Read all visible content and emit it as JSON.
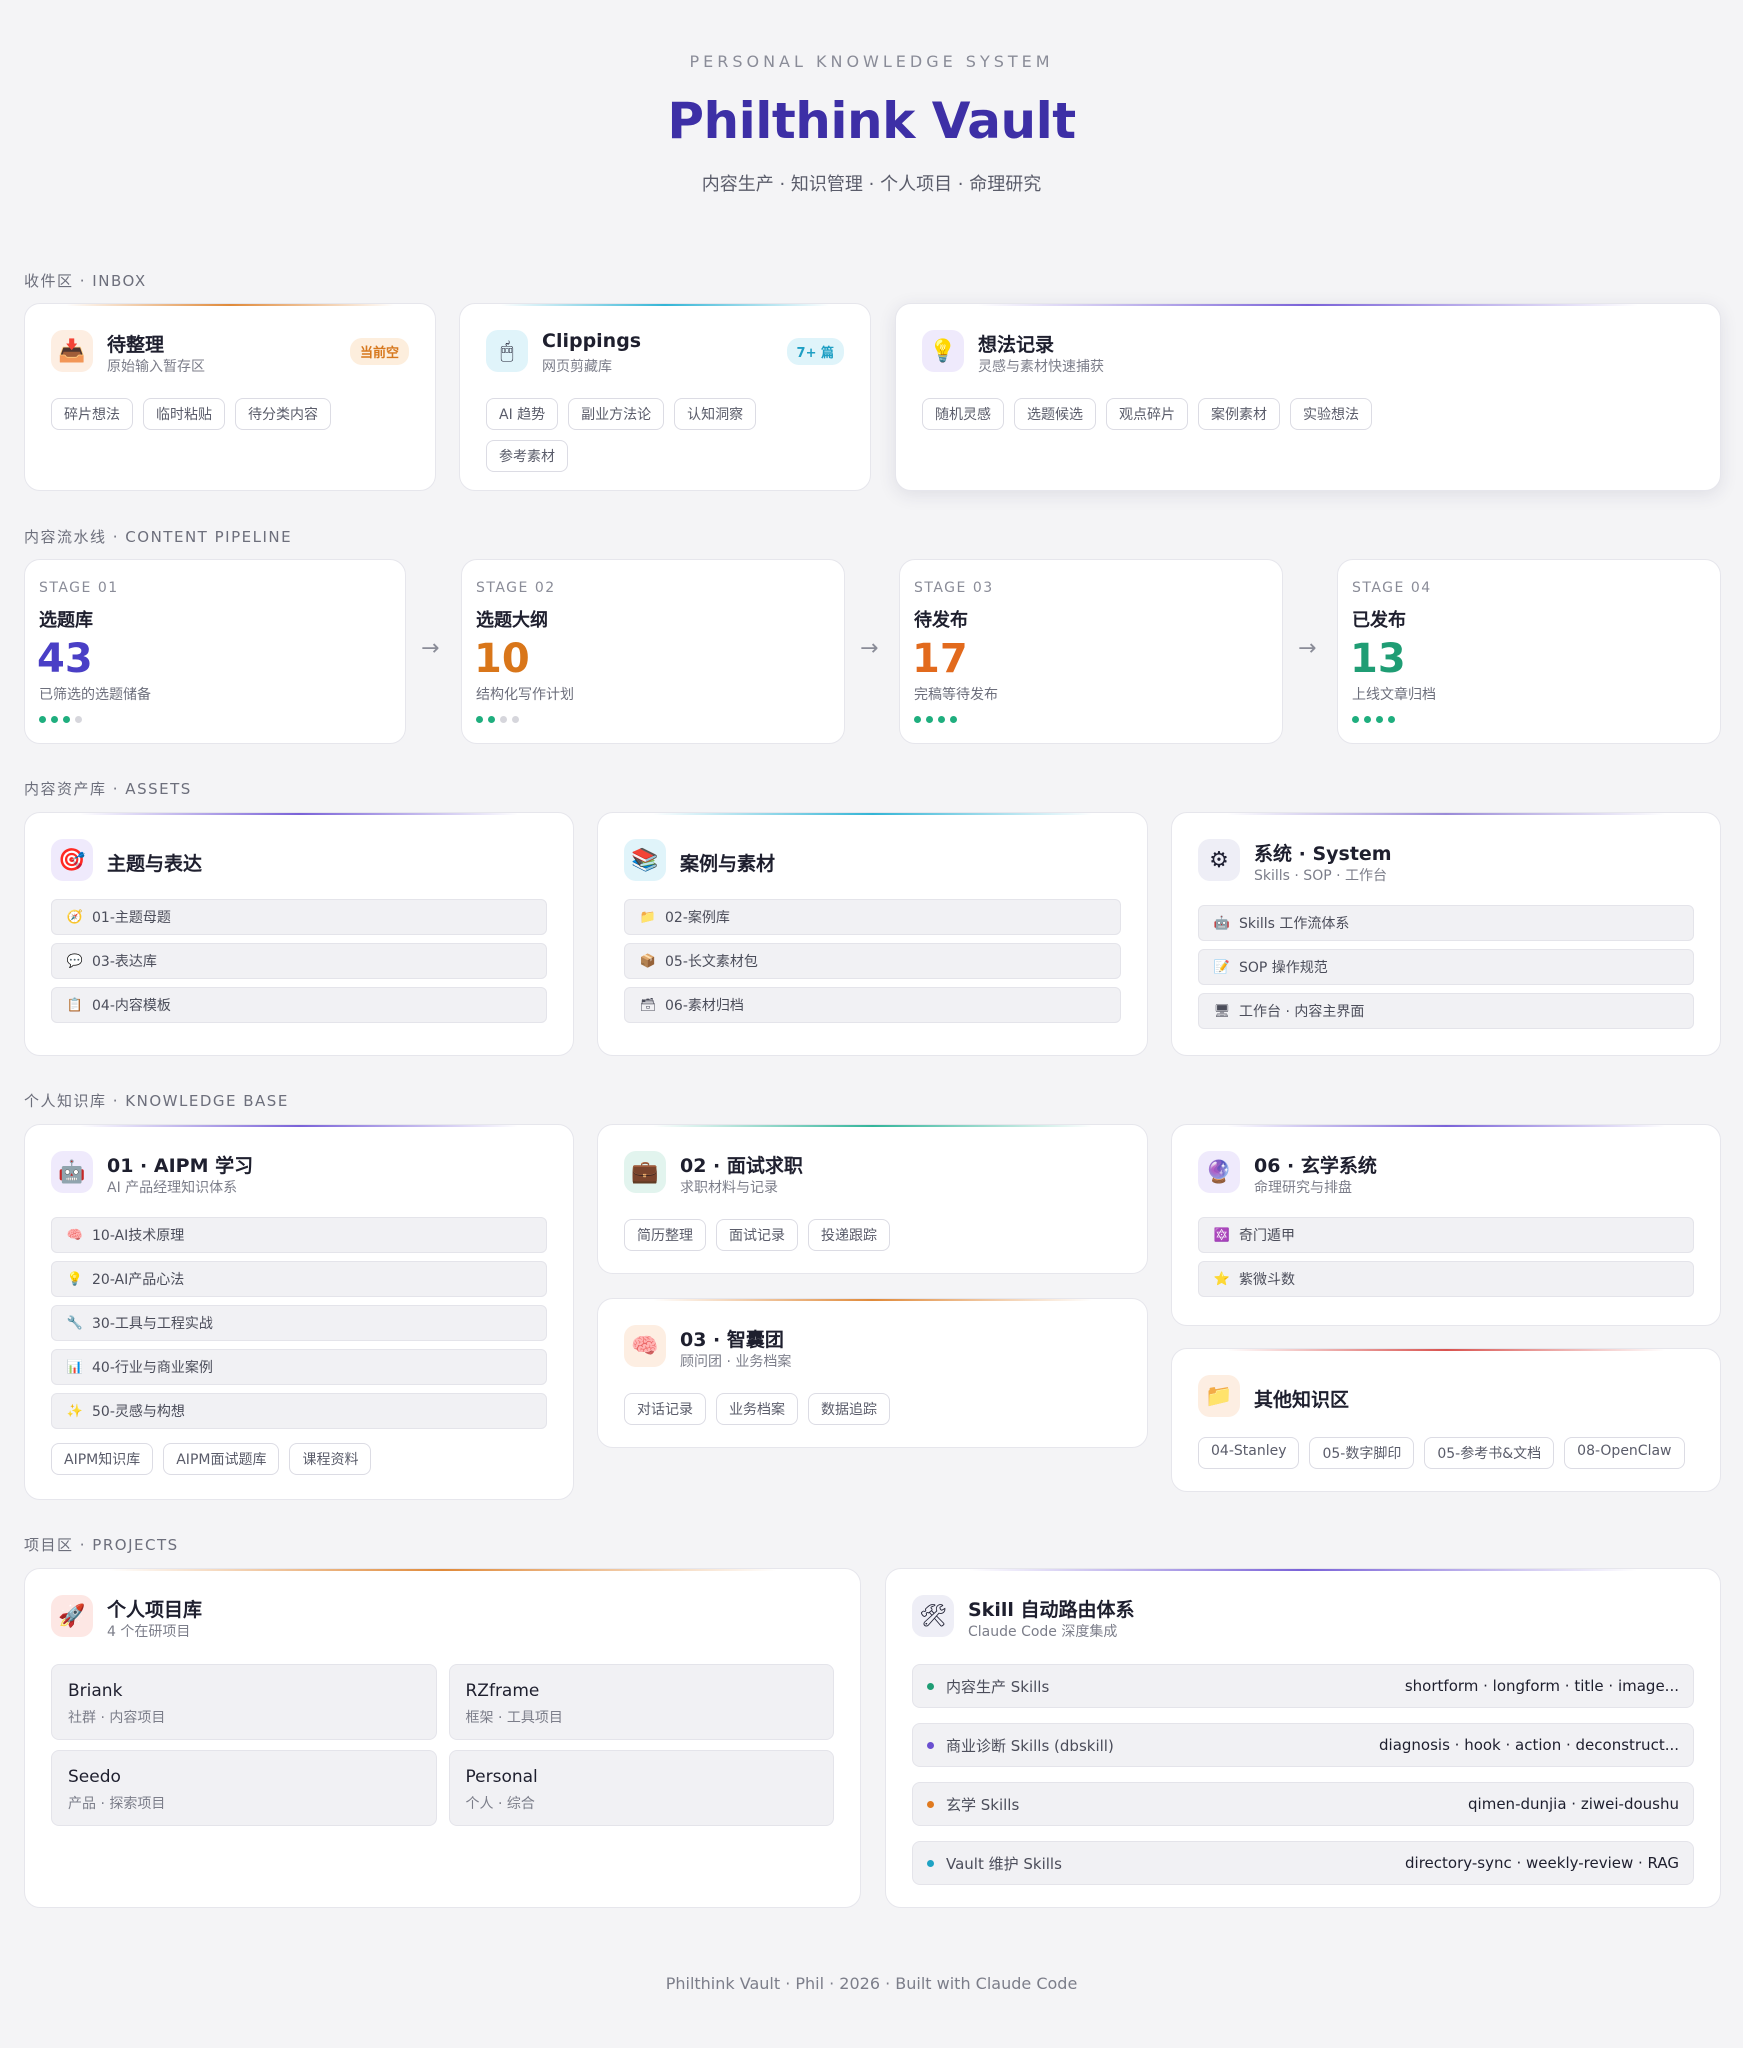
{
  "header": {
    "eyebrow": "PERSONAL KNOWLEDGE SYSTEM",
    "title": "Philthink Vault",
    "subtitle": "内容生产 · 知识管理 · 个人项目 · 命理研究"
  },
  "inbox": {
    "label": "收件区 · INBOX",
    "cards": [
      {
        "title": "待整理",
        "subtitle": "原始输入暂存区",
        "icon": "inbox-tray-icon",
        "badge": "当前空",
        "tags": [
          "碎片想法",
          "临时粘贴",
          "待分类内容"
        ]
      },
      {
        "title": "Clippings",
        "subtitle": "网页剪藏库",
        "icon": "mouse-icon",
        "badge": "7+ 篇",
        "tags": [
          "AI 趋势",
          "副业方法论",
          "认知洞察",
          "参考素材"
        ]
      },
      {
        "title": "想法记录",
        "subtitle": "灵感与素材快速捕获",
        "icon": "lightbulb-icon",
        "tags": [
          "随机灵感",
          "选题候选",
          "观点碎片",
          "案例素材",
          "实验想法"
        ]
      }
    ]
  },
  "pipeline": {
    "label": "内容流水线 · CONTENT PIPELINE",
    "arrow": "→",
    "stages": [
      {
        "stage": "STAGE 01",
        "name": "选题库",
        "count": "43",
        "desc": "已筛选的选题储备",
        "filled": 3,
        "total": 4,
        "color": "#4a3fc6"
      },
      {
        "stage": "STAGE 02",
        "name": "选题大纲",
        "count": "10",
        "desc": "结构化写作计划",
        "filled": 2,
        "total": 4,
        "color": "#d9761a"
      },
      {
        "stage": "STAGE 03",
        "name": "待发布",
        "count": "17",
        "desc": "完稿等待发布",
        "filled": 4,
        "total": 4,
        "color": "#e26a1d"
      },
      {
        "stage": "STAGE 04",
        "name": "已发布",
        "count": "13",
        "desc": "上线文章归档",
        "filled": 4,
        "total": 4,
        "color": "#1f9d74"
      }
    ]
  },
  "assets": {
    "label": "内容资产库 · ASSETS",
    "cards": [
      {
        "title": "主题与表达",
        "icon": "target-icon",
        "rows": [
          {
            "icon": "compass-icon",
            "glyph": "🧭",
            "text": "01-主题母题"
          },
          {
            "icon": "speech-bubble-icon",
            "glyph": "💬",
            "text": "03-表达库"
          },
          {
            "icon": "clipboard-icon",
            "glyph": "📋",
            "text": "04-内容模板"
          }
        ]
      },
      {
        "title": "案例与素材",
        "icon": "books-icon",
        "rows": [
          {
            "icon": "folder-icon",
            "glyph": "📁",
            "text": "02-案例库"
          },
          {
            "icon": "package-icon",
            "glyph": "📦",
            "text": "05-长文素材包"
          },
          {
            "icon": "archive-icon",
            "glyph": "🗃",
            "text": "06-素材归档"
          }
        ]
      },
      {
        "title": "系统 · System",
        "subtitle": "Skills · SOP · 工作台",
        "icon": "gear-icon",
        "rows": [
          {
            "icon": "robot-icon",
            "glyph": "🤖",
            "text": "Skills 工作流体系"
          },
          {
            "icon": "memo-icon",
            "glyph": "📝",
            "text": "SOP 操作规范"
          },
          {
            "icon": "monitor-icon",
            "glyph": "🖥",
            "text": "工作台 · 内容主界面"
          }
        ]
      }
    ]
  },
  "knowledge": {
    "label": "个人知识库 · KNOWLEDGE BASE",
    "aipm": {
      "title": "01 · AIPM 学习",
      "subtitle": "AI 产品经理知识体系",
      "icon": "robot-icon",
      "rows": [
        {
          "icon": "brain-icon",
          "glyph": "🧠",
          "text": "10-AI技术原理"
        },
        {
          "icon": "lightbulb-icon",
          "glyph": "💡",
          "text": "20-AI产品心法"
        },
        {
          "icon": "wrench-icon",
          "glyph": "🔧",
          "text": "30-工具与工程实战"
        },
        {
          "icon": "chart-icon",
          "glyph": "📊",
          "text": "40-行业与商业案例"
        },
        {
          "icon": "sparkle-icon",
          "glyph": "✨",
          "text": "50-灵感与构想"
        }
      ],
      "tags": [
        "AIPM知识库",
        "AIPM面试题库",
        "课程资料"
      ]
    },
    "job": {
      "title": "02 · 面试求职",
      "subtitle": "求职材料与记录",
      "icon": "briefcase-icon",
      "tags": [
        "简历整理",
        "面试记录",
        "投递跟踪"
      ]
    },
    "think": {
      "title": "03 · 智囊团",
      "subtitle": "顾问团 · 业务档案",
      "icon": "brain-icon",
      "tags": [
        "对话记录",
        "业务档案",
        "数据追踪"
      ]
    },
    "mystic": {
      "title": "06 · 玄学系统",
      "subtitle": "命理研究与排盘",
      "icon": "crystal-ball-icon",
      "rows": [
        {
          "icon": "seal-icon",
          "glyph": "🔮",
          "text": "奇门遁甲"
        },
        {
          "icon": "star-icon",
          "glyph": "⭐",
          "text": "紫微斗数"
        }
      ]
    },
    "other": {
      "title": "其他知识区",
      "icon": "folder-icon",
      "tags": [
        "04-Stanley",
        "05-数字脚印",
        "05-参考书&文档",
        "08-OpenClaw"
      ]
    }
  },
  "projects": {
    "label": "项目区 · PROJECTS",
    "library": {
      "title": "个人项目库",
      "subtitle": "4 个在研项目",
      "icon": "rocket-icon",
      "items": [
        {
          "name": "Briank",
          "sub": "社群 · 内容项目"
        },
        {
          "name": "RZframe",
          "sub": "框架 · 工具项目"
        },
        {
          "name": "Seedo",
          "sub": "产品 · 探索项目"
        },
        {
          "name": "Personal",
          "sub": "个人 · 综合"
        }
      ]
    },
    "skills": {
      "title": "Skill 自动路由体系",
      "subtitle": "Claude Code 深度集成",
      "icon": "tools-icon",
      "items": [
        {
          "name": "内容生产 Skills",
          "list": "shortform · longform · title · image...",
          "color": "#1f9d74"
        },
        {
          "name": "商业诊断 Skills (dbskill)",
          "list": "diagnosis · hook · action · deconstruct...",
          "color": "#6a4fd0"
        },
        {
          "name": "玄学 Skills",
          "list": "qimen-dunjia · ziwei-doushu",
          "color": "#e07a1f"
        },
        {
          "name": "Vault 维护 Skills",
          "list": "directory-sync · weekly-review · RAG",
          "color": "#1fa3c4"
        }
      ]
    }
  },
  "footer": {
    "text": "Philthink Vault · Phil · 2026 · Built with Claude Code"
  }
}
